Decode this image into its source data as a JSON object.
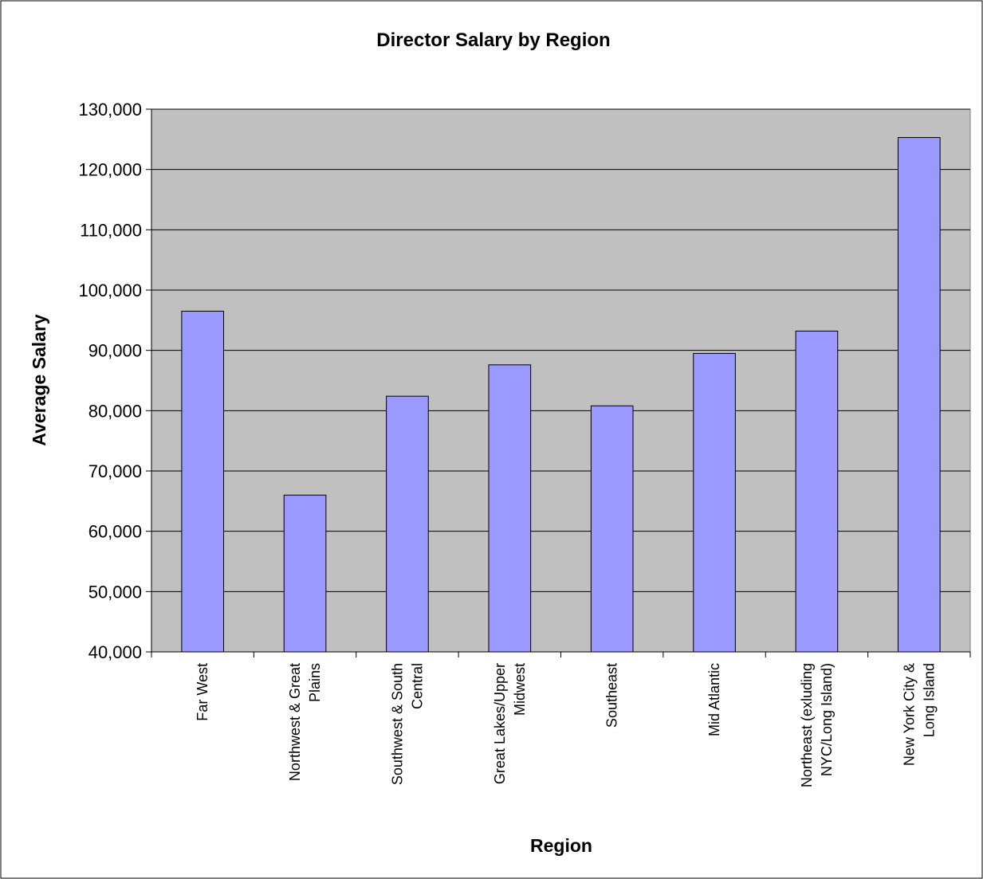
{
  "chart_data": {
    "type": "bar",
    "title": "Director Salary by Region",
    "xlabel": "Region",
    "ylabel": "Average Salary",
    "categories": [
      [
        "Far West"
      ],
      [
        "Northwest & Great",
        "Plains"
      ],
      [
        "Southwest & South",
        "Central"
      ],
      [
        "Great Lakes/Upper",
        "Midwest"
      ],
      [
        "Southeast"
      ],
      [
        "Mid Atlantic"
      ],
      [
        "Northeast (exluding",
        "NYC/Long Island)"
      ],
      [
        "New York City &",
        "Long Island"
      ]
    ],
    "values": [
      96500,
      66000,
      82400,
      87600,
      80800,
      89500,
      93200,
      125300
    ],
    "ylim": [
      40000,
      130000
    ],
    "ytick_step": 10000,
    "ytick_labels": [
      "40,000",
      "50,000",
      "60,000",
      "70,000",
      "80,000",
      "90,000",
      "100,000",
      "110,000",
      "120,000",
      "130,000"
    ],
    "grid": true,
    "legend": "none",
    "colors": {
      "bar_fill": "#9999FF",
      "plot_background": "#C0C0C0",
      "gridline": "#000000"
    }
  }
}
